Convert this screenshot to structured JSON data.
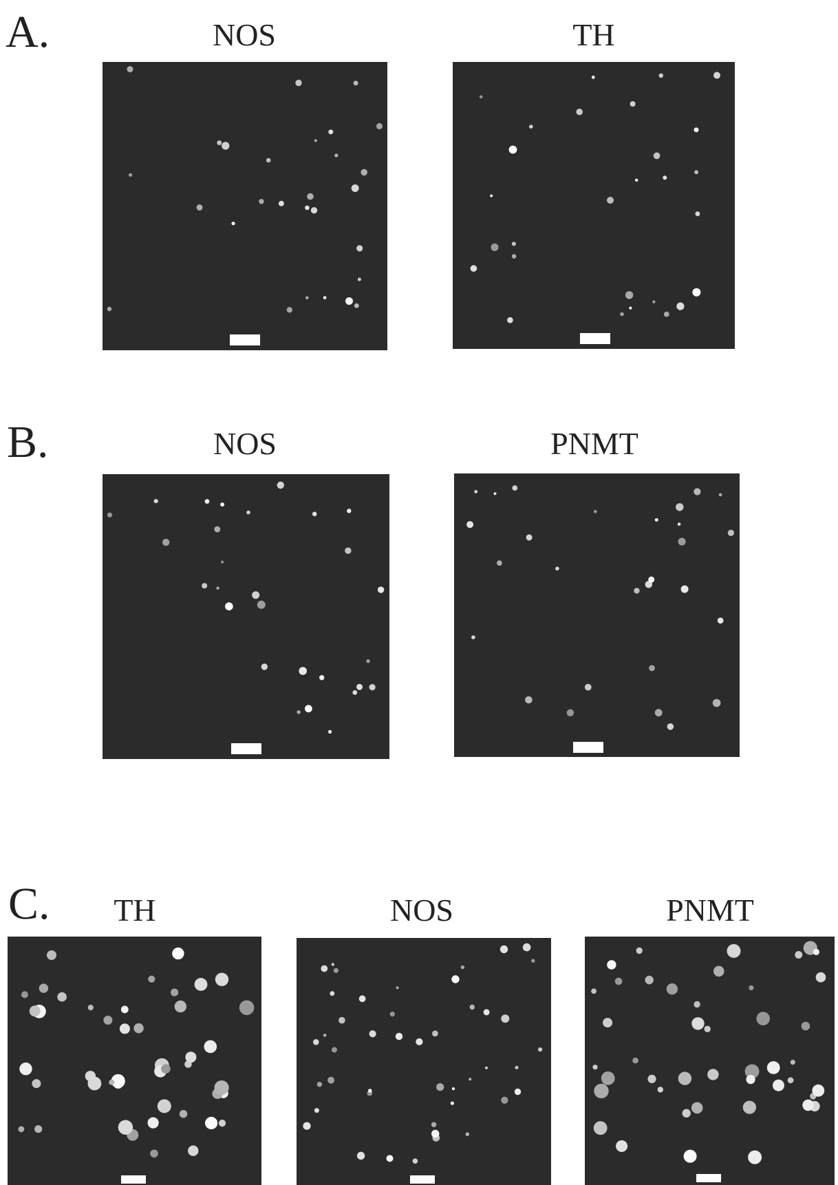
{
  "panels": [
    {
      "label": "A.",
      "images": [
        {
          "title": "NOS"
        },
        {
          "title": "TH"
        }
      ]
    },
    {
      "label": "B.",
      "images": [
        {
          "title": "NOS"
        },
        {
          "title": "PNMT"
        }
      ]
    },
    {
      "label": "C.",
      "images": [
        {
          "title": "TH"
        },
        {
          "title": "NOS"
        },
        {
          "title": "PNMT"
        }
      ]
    }
  ]
}
